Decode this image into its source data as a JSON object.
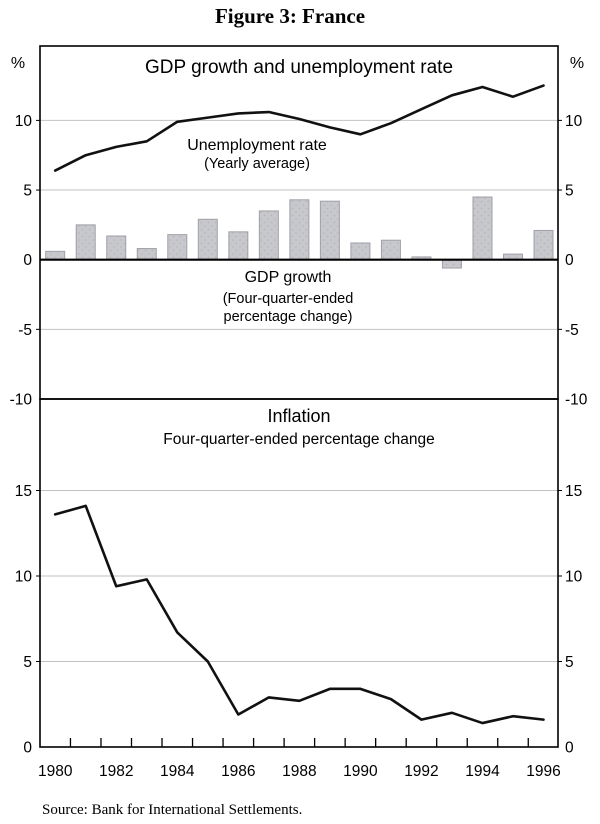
{
  "figure": {
    "title": "Figure 3: France",
    "source": "Source: Bank for International Settlements."
  },
  "colors": {
    "background": "#ffffff",
    "axis": "#000000",
    "grid": "#c2c2c2",
    "line": "#111111",
    "bar_fill": "#c7c7ce",
    "bar_dot": "#b6b6a8",
    "bar_border": "#a0a0a8",
    "text": "#000000"
  },
  "chart_data": [
    {
      "panel": "top",
      "type": "bar+line",
      "title": "GDP growth and unemployment rate",
      "y_unit_left": "%",
      "y_unit_right": "%",
      "years": [
        1980,
        1981,
        1982,
        1983,
        1984,
        1985,
        1986,
        1987,
        1988,
        1989,
        1990,
        1991,
        1992,
        1993,
        1994,
        1995,
        1996
      ],
      "ylim": [
        -10,
        15.34
      ],
      "yticks": [
        10,
        5,
        0,
        -5,
        -10
      ],
      "gridlines": [
        10,
        5,
        -5
      ],
      "zero_line": 0,
      "grid_on": true,
      "series": [
        {
          "name": "Unemployment rate",
          "type": "line",
          "label_lines": [
            "Unemployment rate",
            "(Yearly average)"
          ],
          "values": [
            6.4,
            7.5,
            8.1,
            8.5,
            9.9,
            10.2,
            10.5,
            10.6,
            10.1,
            9.5,
            9.0,
            9.8,
            10.8,
            11.8,
            12.4,
            11.7,
            12.5
          ]
        },
        {
          "name": "GDP growth",
          "type": "bar",
          "label_lines": [
            "GDP growth",
            "(Four-quarter-ended",
            "percentage change)"
          ],
          "values": [
            0.6,
            2.5,
            1.7,
            0.8,
            1.8,
            2.9,
            2.0,
            3.5,
            4.3,
            4.2,
            1.2,
            1.4,
            0.2,
            -0.6,
            4.5,
            0.4,
            2.1
          ]
        }
      ]
    },
    {
      "panel": "bottom",
      "type": "line",
      "title": "Inflation",
      "subtitle": "Four-quarter-ended percentage change",
      "years": [
        1980,
        1981,
        1982,
        1983,
        1984,
        1985,
        1986,
        1987,
        1988,
        1989,
        1990,
        1991,
        1992,
        1993,
        1994,
        1995,
        1996
      ],
      "xtick_labels": [
        "1980",
        "1982",
        "1984",
        "1986",
        "1988",
        "1990",
        "1992",
        "1994",
        "1996"
      ],
      "ylim": [
        0,
        20.35
      ],
      "yticks": [
        15,
        10,
        5,
        0
      ],
      "gridlines": [
        15,
        10,
        5
      ],
      "grid_on": true,
      "series": [
        {
          "name": "Inflation",
          "type": "line",
          "values": [
            13.6,
            14.1,
            9.4,
            9.8,
            6.7,
            5.0,
            1.9,
            2.9,
            2.7,
            3.4,
            3.4,
            2.8,
            1.6,
            2.0,
            1.4,
            1.8,
            1.6
          ]
        }
      ]
    }
  ]
}
